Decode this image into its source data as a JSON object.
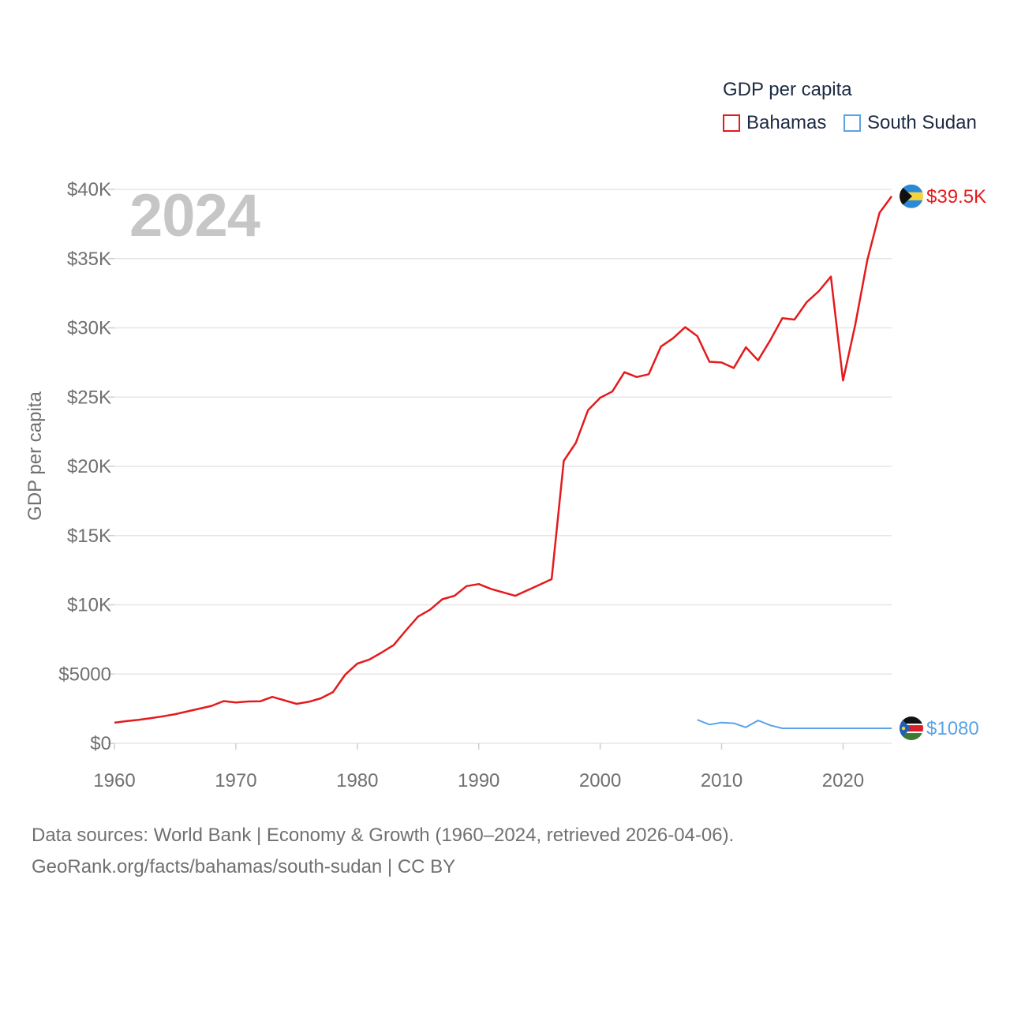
{
  "legend": {
    "title": "GDP per capita",
    "items": [
      {
        "label": "Bahamas",
        "color": "#e41a1c"
      },
      {
        "label": "South Sudan",
        "color": "#5aa2e6"
      }
    ]
  },
  "current_year": "2024",
  "end_labels": {
    "bahamas": "$39.5K",
    "south_sudan": "$1080"
  },
  "footer": {
    "line1": "Data sources: World Bank | Economy & Growth (1960–2024, retrieved 2026-04-06).",
    "line2": "GeoRank.org/facts/bahamas/south-sudan | CC BY"
  },
  "chart_data": {
    "type": "line",
    "title": "GDP per capita",
    "xlabel": "",
    "ylabel": "GDP per capita",
    "xlim": [
      1960,
      2024
    ],
    "ylim": [
      0,
      40000
    ],
    "x_ticks": [
      1960,
      1970,
      1980,
      1990,
      2000,
      2010,
      2020
    ],
    "x_tick_labels": [
      "1960",
      "1970",
      "1980",
      "1990",
      "2000",
      "2010",
      "2020"
    ],
    "y_ticks": [
      0,
      5000,
      10000,
      15000,
      20000,
      25000,
      30000,
      35000,
      40000
    ],
    "y_tick_labels": [
      "$0",
      "$5000",
      "$10K",
      "$15K",
      "$20K",
      "$25K",
      "$30K",
      "$35K",
      "$40K"
    ],
    "grid": true,
    "series": [
      {
        "name": "Bahamas",
        "color": "#e41a1c",
        "x": [
          1960,
          1961,
          1962,
          1963,
          1964,
          1965,
          1966,
          1967,
          1968,
          1969,
          1970,
          1971,
          1972,
          1973,
          1974,
          1975,
          1976,
          1977,
          1978,
          1979,
          1980,
          1981,
          1982,
          1983,
          1984,
          1985,
          1986,
          1987,
          1988,
          1989,
          1990,
          1991,
          1992,
          1993,
          1994,
          1995,
          1996,
          1997,
          1998,
          1999,
          2000,
          2001,
          2002,
          2003,
          2004,
          2005,
          2006,
          2007,
          2008,
          2009,
          2010,
          2011,
          2012,
          2013,
          2014,
          2015,
          2016,
          2017,
          2018,
          2019,
          2020,
          2021,
          2022,
          2023,
          2024
        ],
        "values": [
          1490,
          1600,
          1700,
          1820,
          1950,
          2100,
          2300,
          2500,
          2700,
          3050,
          2950,
          3020,
          3030,
          3350,
          3100,
          2850,
          3000,
          3250,
          3700,
          4950,
          5750,
          6050,
          6550,
          7100,
          8150,
          9150,
          9650,
          10400,
          10650,
          11350,
          11500,
          11150,
          10900,
          10650,
          11050,
          11450,
          11850,
          20400,
          21700,
          24050,
          24950,
          25400,
          26800,
          26450,
          26650,
          28650,
          29250,
          30050,
          29400,
          27550,
          27500,
          27100,
          28600,
          27650,
          29100,
          30700,
          30600,
          31850,
          32650,
          33700,
          26200,
          30200,
          34900,
          38300,
          39500
        ]
      },
      {
        "name": "South Sudan",
        "color": "#5aa2e6",
        "x": [
          2008,
          2009,
          2010,
          2011,
          2012,
          2013,
          2014,
          2015,
          2016,
          2017,
          2018,
          2019,
          2020,
          2021,
          2022,
          2023,
          2024
        ],
        "values": [
          1700,
          1350,
          1500,
          1450,
          1150,
          1650,
          1300,
          1080,
          1080,
          1080,
          1080,
          1080,
          1080,
          1080,
          1080,
          1080,
          1080
        ]
      }
    ]
  }
}
